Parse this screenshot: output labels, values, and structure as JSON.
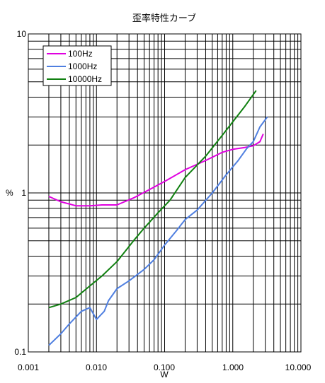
{
  "chart_data": {
    "type": "line",
    "title": "歪率特性カーブ",
    "xlabel": "W",
    "ylabel": "%",
    "x_scale": "log",
    "y_scale": "log",
    "xlim": [
      0.001,
      10
    ],
    "ylim": [
      0.1,
      10
    ],
    "grid": true,
    "legend_position": "top-left",
    "x_tick_labels": [
      "0.001",
      "0.010",
      "0.100",
      "1.000",
      "10.000"
    ],
    "y_tick_labels": [
      "0.1",
      "1",
      "10"
    ],
    "series": [
      {
        "name": "100Hz",
        "color": "#e000e0",
        "x": [
          0.002,
          0.003,
          0.005,
          0.008,
          0.012,
          0.02,
          0.035,
          0.06,
          0.1,
          0.2,
          0.4,
          0.7,
          1.0,
          1.5,
          2.0,
          2.5,
          2.8
        ],
        "y": [
          0.95,
          0.88,
          0.83,
          0.83,
          0.84,
          0.84,
          0.93,
          1.05,
          1.18,
          1.4,
          1.6,
          1.8,
          1.88,
          1.93,
          1.98,
          2.1,
          2.35
        ]
      },
      {
        "name": "1000Hz",
        "color": "#4f7fe0",
        "x": [
          0.002,
          0.003,
          0.004,
          0.006,
          0.008,
          0.01,
          0.013,
          0.015,
          0.02,
          0.03,
          0.05,
          0.07,
          0.1,
          0.15,
          0.2,
          0.3,
          0.5,
          0.8,
          1.2,
          1.6,
          2.0,
          2.5,
          3.2
        ],
        "y": [
          0.11,
          0.13,
          0.15,
          0.18,
          0.19,
          0.16,
          0.18,
          0.21,
          0.25,
          0.28,
          0.33,
          0.38,
          0.47,
          0.58,
          0.68,
          0.78,
          1.0,
          1.3,
          1.6,
          1.9,
          2.1,
          2.6,
          3.0
        ]
      },
      {
        "name": "10000Hz",
        "color": "#108010",
        "x": [
          0.002,
          0.003,
          0.005,
          0.008,
          0.012,
          0.02,
          0.035,
          0.05,
          0.08,
          0.12,
          0.2,
          0.4,
          0.7,
          1.0,
          1.5,
          2.2
        ],
        "y": [
          0.19,
          0.2,
          0.22,
          0.26,
          0.3,
          0.37,
          0.5,
          0.6,
          0.75,
          0.9,
          1.25,
          1.7,
          2.3,
          2.8,
          3.5,
          4.4
        ]
      }
    ]
  }
}
